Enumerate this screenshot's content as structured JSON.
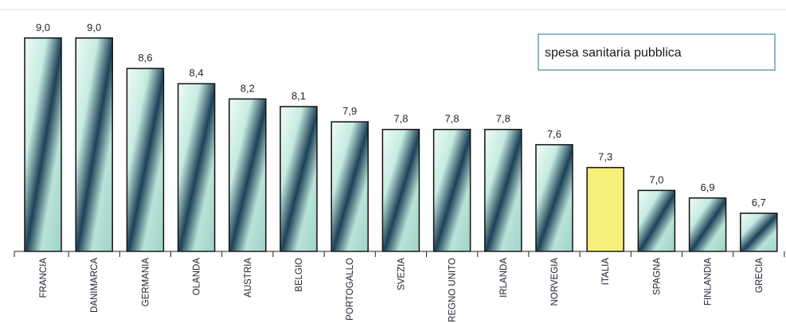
{
  "chart_data": {
    "type": "bar",
    "categories": [
      "FRANCIA",
      "DANIMARCA",
      "GERMANIA",
      "OLANDA",
      "AUSTRIA",
      "BELGIO",
      "PORTOGALLO",
      "SVEZIA",
      "REGNO UNITO",
      "IRLANDA",
      "NORVEGIA",
      "ITALIA",
      "SPAGNA",
      "FINLANDIA",
      "GRECIA"
    ],
    "values": [
      9.0,
      9.0,
      8.6,
      8.4,
      8.2,
      8.1,
      7.9,
      7.8,
      7.8,
      7.8,
      7.6,
      7.3,
      7.0,
      6.9,
      6.7
    ],
    "value_labels": [
      "9,0",
      "9,0",
      "8,6",
      "8,4",
      "8,2",
      "8,1",
      "7,9",
      "7,8",
      "7,8",
      "7,8",
      "7,6",
      "7,3",
      "7,0",
      "6,9",
      "6,7"
    ],
    "highlight_category": "ITALIA",
    "highlight_color": "#f6f07a",
    "bar_gradient_colors": [
      "#e8faf4",
      "#1c3f55"
    ],
    "legend": "spesa sanitaria pubblica",
    "legend_position": "top-right",
    "title": "",
    "xlabel": "",
    "ylabel": "",
    "grid": false
  }
}
